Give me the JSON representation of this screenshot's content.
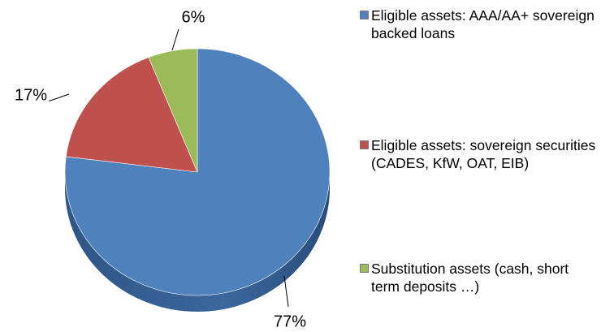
{
  "chart_data": {
    "type": "pie",
    "categories": [
      "Eligible assets: AAA/AA+ sovereign backed loans",
      "Eligible assets: sovereign securities (CADES, KfW, OAT, EIB)",
      "Substitution assets (cash, short term deposits …)"
    ],
    "values": [
      77,
      17,
      6
    ],
    "value_labels": [
      "77%",
      "17%",
      "6%"
    ],
    "colors": [
      "#4f81bd",
      "#c0504d",
      "#9bbb59"
    ],
    "legend": "right"
  }
}
